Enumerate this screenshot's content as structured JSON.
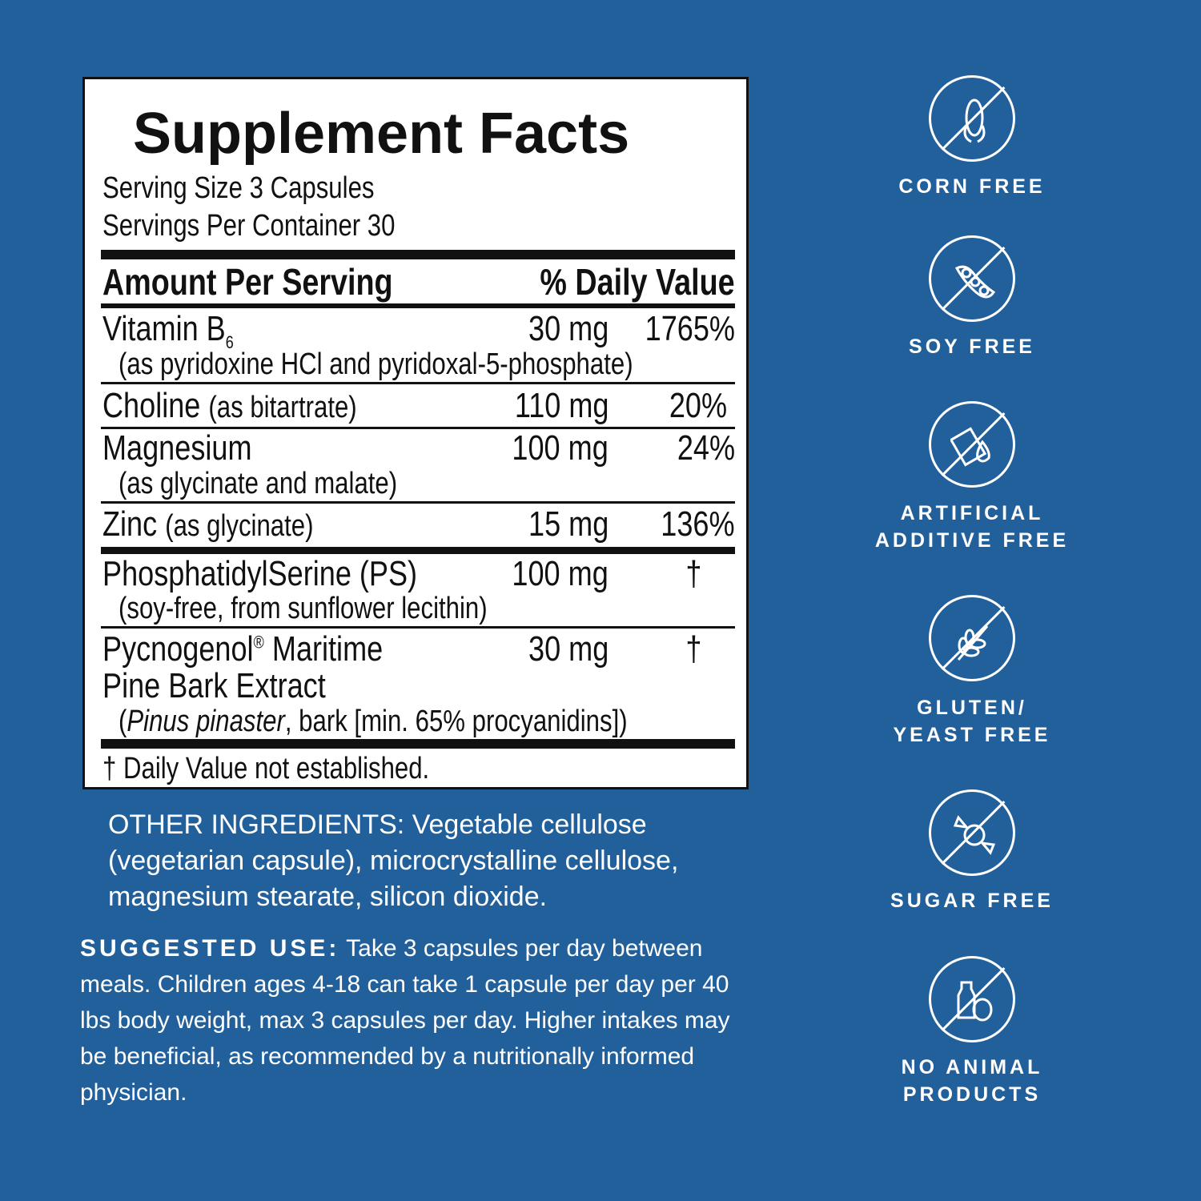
{
  "facts": {
    "title": "Supplement Facts",
    "serving_size": "Serving Size 3 Capsules",
    "servings_per_container": "Servings Per Container 30",
    "header_amount": "Amount Per Serving",
    "header_dv": "% Daily Value",
    "rows": [
      {
        "name": "Vitamin B",
        "sub": "6",
        "amount": "30 mg",
        "dv": "1765%",
        "detail": "(as pyridoxine HCl and pyridoxal-5-phosphate)"
      },
      {
        "name": "Choline",
        "inline": "(as bitartrate)",
        "amount": "110 mg",
        "dv": "20%"
      },
      {
        "name": "Magnesium",
        "amount": "100 mg",
        "dv": "24%",
        "detail": "(as glycinate and malate)"
      },
      {
        "name": "Zinc",
        "inline": "(as glycinate)",
        "amount": "15 mg",
        "dv": "136%"
      },
      {
        "name": "PhosphatidylSerine (PS)",
        "amount": "100 mg",
        "dv": "†",
        "detail": "(soy-free, from sunflower lecithin)"
      },
      {
        "name": "Pycnogenol",
        "reg": "®",
        "name2": " Maritime",
        "line2": "Pine Bark Extract",
        "amount": "30 mg",
        "dv": "†",
        "detail_italic": "Pinus pinaster",
        "detail": ", bark [min. 65% procyanidins])",
        "detail_open": "("
      }
    ],
    "footnote": "† Daily Value not established."
  },
  "other_ingredients": "OTHER INGREDIENTS: Vegetable cellulose (vegetarian capsule), microcrystalline cellulose, magnesium stearate, silicon dioxide.",
  "suggested_use": {
    "label": "SUGGESTED USE:",
    "text": " Take 3 capsules per day between meals. Children ages 4-18 can take 1 capsule per day per 40 lbs body weight, max 3 capsules per day. Higher intakes may be beneficial, as recommended by a nutritionally informed physician."
  },
  "badges": [
    {
      "icon": "corn-icon",
      "l1": "CORN FREE"
    },
    {
      "icon": "soybean-icon",
      "l1": "SOY FREE"
    },
    {
      "icon": "additive-icon",
      "l1": "ARTIFICIAL",
      "l2": "ADDITIVE FREE"
    },
    {
      "icon": "wheat-icon",
      "l1": "GLUTEN/",
      "l2": "YEAST FREE"
    },
    {
      "icon": "candy-icon",
      "l1": "SUGAR FREE"
    },
    {
      "icon": "milk-egg-icon",
      "l1": "NO ANIMAL",
      "l2": "PRODUCTS"
    }
  ],
  "colors": {
    "background": "#22609c",
    "panel": "#ffffff",
    "text": "#111111"
  }
}
